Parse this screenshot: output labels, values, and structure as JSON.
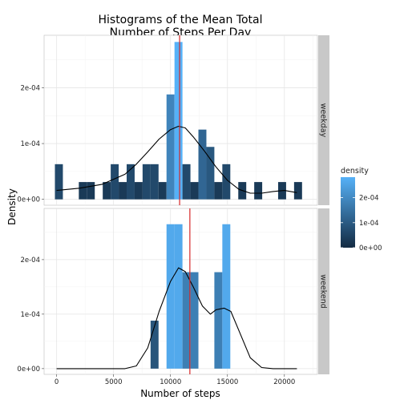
{
  "chart_data": {
    "type": "bar",
    "title": [
      "Histograms of the Mean Total",
      "Number of Steps Per Day"
    ],
    "xlabel": "Number of steps",
    "ylabel": "Density",
    "xlim": [
      -1100,
      22900
    ],
    "ylim": [
      -1.05e-05,
      0.000294
    ],
    "x_ticks": [
      0,
      5000,
      10000,
      15000,
      20000
    ],
    "x_tick_labels": [
      "0",
      "5000",
      "10000",
      "15000",
      "20000"
    ],
    "y_ticks": [
      0,
      0.0001,
      0.0002
    ],
    "y_tick_labels": [
      "0e+00",
      "1e-04",
      "2e-04"
    ],
    "bin_width": 700,
    "grid": true,
    "color_scale": {
      "name": "density",
      "low": "#132B43",
      "high": "#56B1F7",
      "breaks": [
        0,
        0.0001,
        0.0002
      ],
      "labels": [
        "0e+00",
        "1e-04",
        "2e-04"
      ],
      "placement": "right"
    },
    "mean_line_color": "#d62728",
    "density_curve_color": "#000000",
    "panel_bg": "#ffffff",
    "strip_bg": "#c8c8c8",
    "panels": [
      {
        "facet": "weekday",
        "mean": 10800,
        "bars": [
          {
            "x": 200,
            "y": 6.3e-05
          },
          {
            "x": 2300,
            "y": 3.1e-05
          },
          {
            "x": 3000,
            "y": 3.1e-05
          },
          {
            "x": 4400,
            "y": 3.1e-05
          },
          {
            "x": 5100,
            "y": 6.3e-05
          },
          {
            "x": 5800,
            "y": 3.1e-05
          },
          {
            "x": 6500,
            "y": 6.3e-05
          },
          {
            "x": 7200,
            "y": 3.1e-05
          },
          {
            "x": 7900,
            "y": 6.3e-05
          },
          {
            "x": 8600,
            "y": 6.3e-05
          },
          {
            "x": 9300,
            "y": 3.1e-05
          },
          {
            "x": 10000,
            "y": 0.000188
          },
          {
            "x": 10700,
            "y": 0.000282
          },
          {
            "x": 11400,
            "y": 6.3e-05
          },
          {
            "x": 12100,
            "y": 3.1e-05
          },
          {
            "x": 12800,
            "y": 0.000125
          },
          {
            "x": 13500,
            "y": 9.4e-05
          },
          {
            "x": 14200,
            "y": 3.1e-05
          },
          {
            "x": 14900,
            "y": 6.3e-05
          },
          {
            "x": 16300,
            "y": 3.1e-05
          },
          {
            "x": 17700,
            "y": 3.1e-05
          },
          {
            "x": 19800,
            "y": 3.1e-05
          },
          {
            "x": 21200,
            "y": 3.1e-05
          }
        ],
        "density_curve": [
          [
            0,
            1.6e-05
          ],
          [
            2000,
            2e-05
          ],
          [
            4000,
            2.7e-05
          ],
          [
            6000,
            4.5e-05
          ],
          [
            7000,
            6.3e-05
          ],
          [
            8000,
            8.5e-05
          ],
          [
            9000,
            0.000108
          ],
          [
            10000,
            0.000125
          ],
          [
            10700,
            0.000131
          ],
          [
            11300,
            0.000128
          ],
          [
            12000,
            0.000112
          ],
          [
            13000,
            8.6e-05
          ],
          [
            14000,
            5.8e-05
          ],
          [
            15000,
            3.4e-05
          ],
          [
            16000,
            1.8e-05
          ],
          [
            17000,
            1.1e-05
          ],
          [
            18000,
            1.1e-05
          ],
          [
            19000,
            1.4e-05
          ],
          [
            20000,
            1.6e-05
          ],
          [
            21100,
            1.2e-05
          ]
        ]
      },
      {
        "facet": "weekend",
        "mean": 11700,
        "bars": [
          {
            "x": 8600,
            "y": 8.8e-05
          },
          {
            "x": 10000,
            "y": 0.000265
          },
          {
            "x": 10700,
            "y": 0.000265
          },
          {
            "x": 11400,
            "y": 0.000177
          },
          {
            "x": 12100,
            "y": 0.000177
          },
          {
            "x": 14200,
            "y": 0.000177
          },
          {
            "x": 14900,
            "y": 0.000265
          }
        ],
        "density_curve": [
          [
            0,
            0
          ],
          [
            6000,
            0
          ],
          [
            7000,
            5e-06
          ],
          [
            8000,
            3.8e-05
          ],
          [
            9000,
            0.000105
          ],
          [
            10000,
            0.00016
          ],
          [
            10700,
            0.000185
          ],
          [
            11300,
            0.000178
          ],
          [
            12000,
            0.00015
          ],
          [
            12800,
            0.000115
          ],
          [
            13500,
            0.0001
          ],
          [
            14000,
            0.000108
          ],
          [
            14700,
            0.000111
          ],
          [
            15300,
            0.000105
          ],
          [
            16000,
            7e-05
          ],
          [
            17000,
            2e-05
          ],
          [
            18000,
            2e-06
          ],
          [
            19000,
            0
          ],
          [
            21100,
            0
          ]
        ]
      }
    ]
  }
}
